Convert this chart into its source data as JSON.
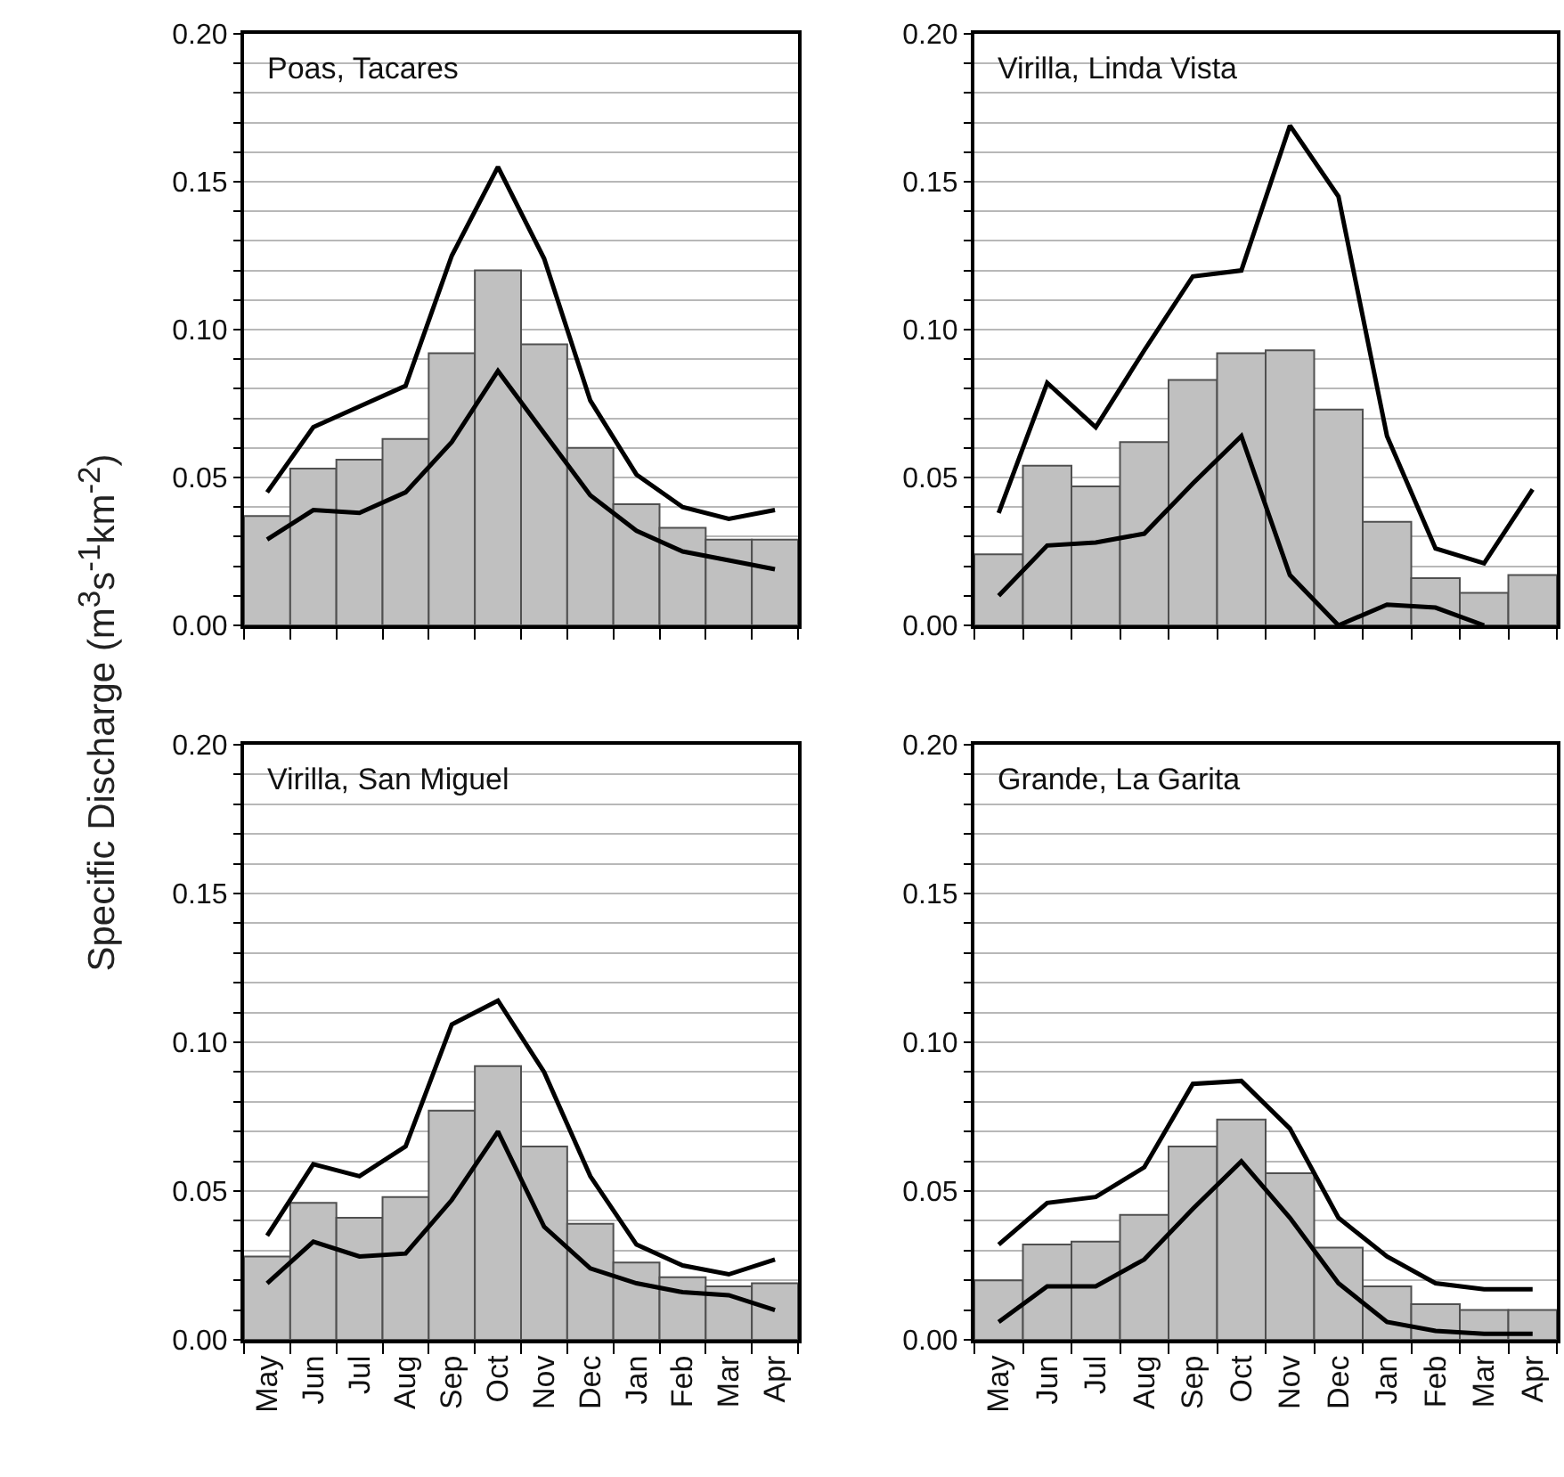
{
  "chart_data": [
    {
      "type": "bar",
      "title": "Poas, Tacares",
      "ylabel": "Specific Discharge (m$^{3}$s$^{-1}$km$^{-2}$)",
      "categories": [
        null,
        null,
        null,
        null,
        null,
        null,
        null,
        null,
        null,
        null,
        null,
        null
      ],
      "ylim": [
        0,
        0.2
      ],
      "yticks": [
        {
          "value": 0,
          "label": "0.00"
        },
        {
          "value": 0.01,
          "label": null
        },
        {
          "value": 0.02,
          "label": null
        },
        {
          "value": 0.03,
          "label": null
        },
        {
          "value": 0.04,
          "label": null
        },
        {
          "value": 0.05,
          "label": "0.05"
        },
        {
          "value": 0.06,
          "label": null
        },
        {
          "value": 0.07,
          "label": null
        },
        {
          "value": 0.08,
          "label": null
        },
        {
          "value": 0.09,
          "label": null
        },
        {
          "value": 0.1,
          "label": "0.10"
        },
        {
          "value": 0.11,
          "label": null
        },
        {
          "value": 0.12,
          "label": null
        },
        {
          "value": 0.13,
          "label": null
        },
        {
          "value": 0.14,
          "label": null
        },
        {
          "value": 0.15,
          "label": "0.15"
        },
        {
          "value": 0.16,
          "label": null
        },
        {
          "value": 0.17,
          "label": null
        },
        {
          "value": 0.18,
          "label": null
        },
        {
          "value": 0.19,
          "label": null
        },
        {
          "value": 0.2,
          "label": "0.20"
        }
      ],
      "grid": "y",
      "tick_labels": "y",
      "series": [
        {
          "color": "#c0c0c0",
          "values": [
            0.037,
            0.053,
            0.056,
            0.063,
            0.092,
            0.12,
            0.095,
            0.06,
            0.041,
            0.033,
            0.029,
            0.029
          ]
        },
        {
          "type": "line",
          "color": "#000000",
          "values": [
            0.045,
            0.067,
            0.074,
            0.081,
            0.125,
            0.155,
            0.124,
            0.076,
            0.051,
            0.04,
            0.036,
            0.039
          ]
        },
        {
          "type": "line",
          "color": "#000000",
          "values": [
            0.029,
            0.039,
            0.038,
            0.045,
            0.062,
            0.086,
            0.065,
            0.044,
            0.032,
            0.025,
            0.022,
            0.019
          ]
        }
      ]
    },
    {
      "type": "bar",
      "title": "Virilla, Linda Vista",
      "categories": [
        null,
        null,
        null,
        null,
        null,
        null,
        null,
        null,
        null,
        null,
        null,
        null
      ],
      "ylim": [
        0,
        0.2
      ],
      "yticks": [
        {
          "value": 0,
          "label": "0.00"
        },
        {
          "value": 0.01,
          "label": null
        },
        {
          "value": 0.02,
          "label": null
        },
        {
          "value": 0.03,
          "label": null
        },
        {
          "value": 0.04,
          "label": null
        },
        {
          "value": 0.05,
          "label": "0.05"
        },
        {
          "value": 0.06,
          "label": null
        },
        {
          "value": 0.07,
          "label": null
        },
        {
          "value": 0.08,
          "label": null
        },
        {
          "value": 0.09,
          "label": null
        },
        {
          "value": 0.1,
          "label": "0.10"
        },
        {
          "value": 0.11,
          "label": null
        },
        {
          "value": 0.12,
          "label": null
        },
        {
          "value": 0.13,
          "label": null
        },
        {
          "value": 0.14,
          "label": null
        },
        {
          "value": 0.15,
          "label": "0.15"
        },
        {
          "value": 0.16,
          "label": null
        },
        {
          "value": 0.17,
          "label": null
        },
        {
          "value": 0.18,
          "label": null
        },
        {
          "value": 0.19,
          "label": null
        },
        {
          "value": 0.2,
          "label": "0.20"
        }
      ],
      "grid": "y",
      "tick_labels": "y",
      "series": [
        {
          "color": "#c0c0c0",
          "values": [
            0.024,
            0.054,
            0.047,
            0.062,
            0.083,
            0.092,
            0.093,
            0.073,
            0.035,
            0.016,
            0.011,
            0.017
          ]
        },
        {
          "type": "line",
          "color": "#000000",
          "values": [
            0.038,
            0.082,
            0.067,
            0.093,
            0.118,
            0.12,
            0.169,
            0.145,
            0.064,
            0.026,
            0.021,
            0.046
          ]
        },
        {
          "type": "line",
          "color": "#000000",
          "values": [
            0.01,
            0.027,
            0.028,
            0.031,
            0.048,
            0.064,
            0.017,
            0.0,
            0.007,
            0.006,
            0.0,
            null
          ]
        }
      ]
    },
    {
      "type": "bar",
      "title": "Virilla, San Miguel",
      "categories": [
        "May",
        "Jun",
        "Jul",
        "Aug",
        "Sep",
        "Oct",
        "Nov",
        "Dec",
        "Jan",
        "Feb",
        "Mar",
        "Apr"
      ],
      "ylim": [
        0,
        0.2
      ],
      "yticks": [
        {
          "value": 0,
          "label": "0.00"
        },
        {
          "value": 0.01,
          "label": null
        },
        {
          "value": 0.02,
          "label": null
        },
        {
          "value": 0.03,
          "label": null
        },
        {
          "value": 0.04,
          "label": null
        },
        {
          "value": 0.05,
          "label": "0.05"
        },
        {
          "value": 0.06,
          "label": null
        },
        {
          "value": 0.07,
          "label": null
        },
        {
          "value": 0.08,
          "label": null
        },
        {
          "value": 0.09,
          "label": null
        },
        {
          "value": 0.1,
          "label": "0.10"
        },
        {
          "value": 0.11,
          "label": null
        },
        {
          "value": 0.12,
          "label": null
        },
        {
          "value": 0.13,
          "label": null
        },
        {
          "value": 0.14,
          "label": null
        },
        {
          "value": 0.15,
          "label": "0.15"
        },
        {
          "value": 0.16,
          "label": null
        },
        {
          "value": 0.17,
          "label": null
        },
        {
          "value": 0.18,
          "label": null
        },
        {
          "value": 0.19,
          "label": null
        },
        {
          "value": 0.2,
          "label": "0.20"
        }
      ],
      "grid": "y",
      "series": [
        {
          "color": "#c0c0c0",
          "values": [
            0.028,
            0.046,
            0.041,
            0.048,
            0.077,
            0.092,
            0.065,
            0.039,
            0.026,
            0.021,
            0.018,
            0.019
          ]
        },
        {
          "type": "line",
          "color": "#000000",
          "values": [
            0.035,
            0.059,
            0.055,
            0.065,
            0.106,
            0.114,
            0.09,
            0.055,
            0.032,
            0.025,
            0.022,
            0.027
          ]
        },
        {
          "type": "line",
          "color": "#000000",
          "values": [
            0.019,
            0.033,
            0.028,
            0.029,
            0.047,
            0.07,
            0.038,
            0.024,
            0.019,
            0.016,
            0.015,
            0.01
          ]
        }
      ]
    },
    {
      "type": "bar",
      "title": "Grande, La Garita",
      "categories": [
        "May",
        "Jun",
        "Jul",
        "Aug",
        "Sep",
        "Oct",
        "Nov",
        "Dec",
        "Jan",
        "Feb",
        "Mar",
        "Apr"
      ],
      "ylim": [
        0,
        0.2
      ],
      "yticks": [
        {
          "value": 0,
          "label": "0.00"
        },
        {
          "value": 0.01,
          "label": null
        },
        {
          "value": 0.02,
          "label": null
        },
        {
          "value": 0.03,
          "label": null
        },
        {
          "value": 0.04,
          "label": null
        },
        {
          "value": 0.05,
          "label": "0.05"
        },
        {
          "value": 0.06,
          "label": null
        },
        {
          "value": 0.07,
          "label": null
        },
        {
          "value": 0.08,
          "label": null
        },
        {
          "value": 0.09,
          "label": null
        },
        {
          "value": 0.1,
          "label": "0.10"
        },
        {
          "value": 0.11,
          "label": null
        },
        {
          "value": 0.12,
          "label": null
        },
        {
          "value": 0.13,
          "label": null
        },
        {
          "value": 0.14,
          "label": null
        },
        {
          "value": 0.15,
          "label": "0.15"
        },
        {
          "value": 0.16,
          "label": null
        },
        {
          "value": 0.17,
          "label": null
        },
        {
          "value": 0.18,
          "label": null
        },
        {
          "value": 0.19,
          "label": null
        },
        {
          "value": 0.2,
          "label": "0.20"
        }
      ],
      "grid": "y",
      "series": [
        {
          "color": "#c0c0c0",
          "values": [
            0.02,
            0.032,
            0.033,
            0.042,
            0.065,
            0.074,
            0.056,
            0.031,
            0.018,
            0.012,
            0.01,
            0.01
          ]
        },
        {
          "type": "line",
          "color": "#000000",
          "values": [
            0.032,
            0.046,
            0.048,
            0.058,
            0.086,
            0.087,
            0.071,
            0.041,
            0.028,
            0.019,
            0.017,
            0.017
          ]
        },
        {
          "type": "line",
          "color": "#000000",
          "values": [
            0.006,
            0.018,
            0.018,
            0.027,
            0.044,
            0.06,
            0.041,
            0.019,
            0.006,
            0.003,
            0.002,
            0.002
          ]
        }
      ]
    }
  ]
}
